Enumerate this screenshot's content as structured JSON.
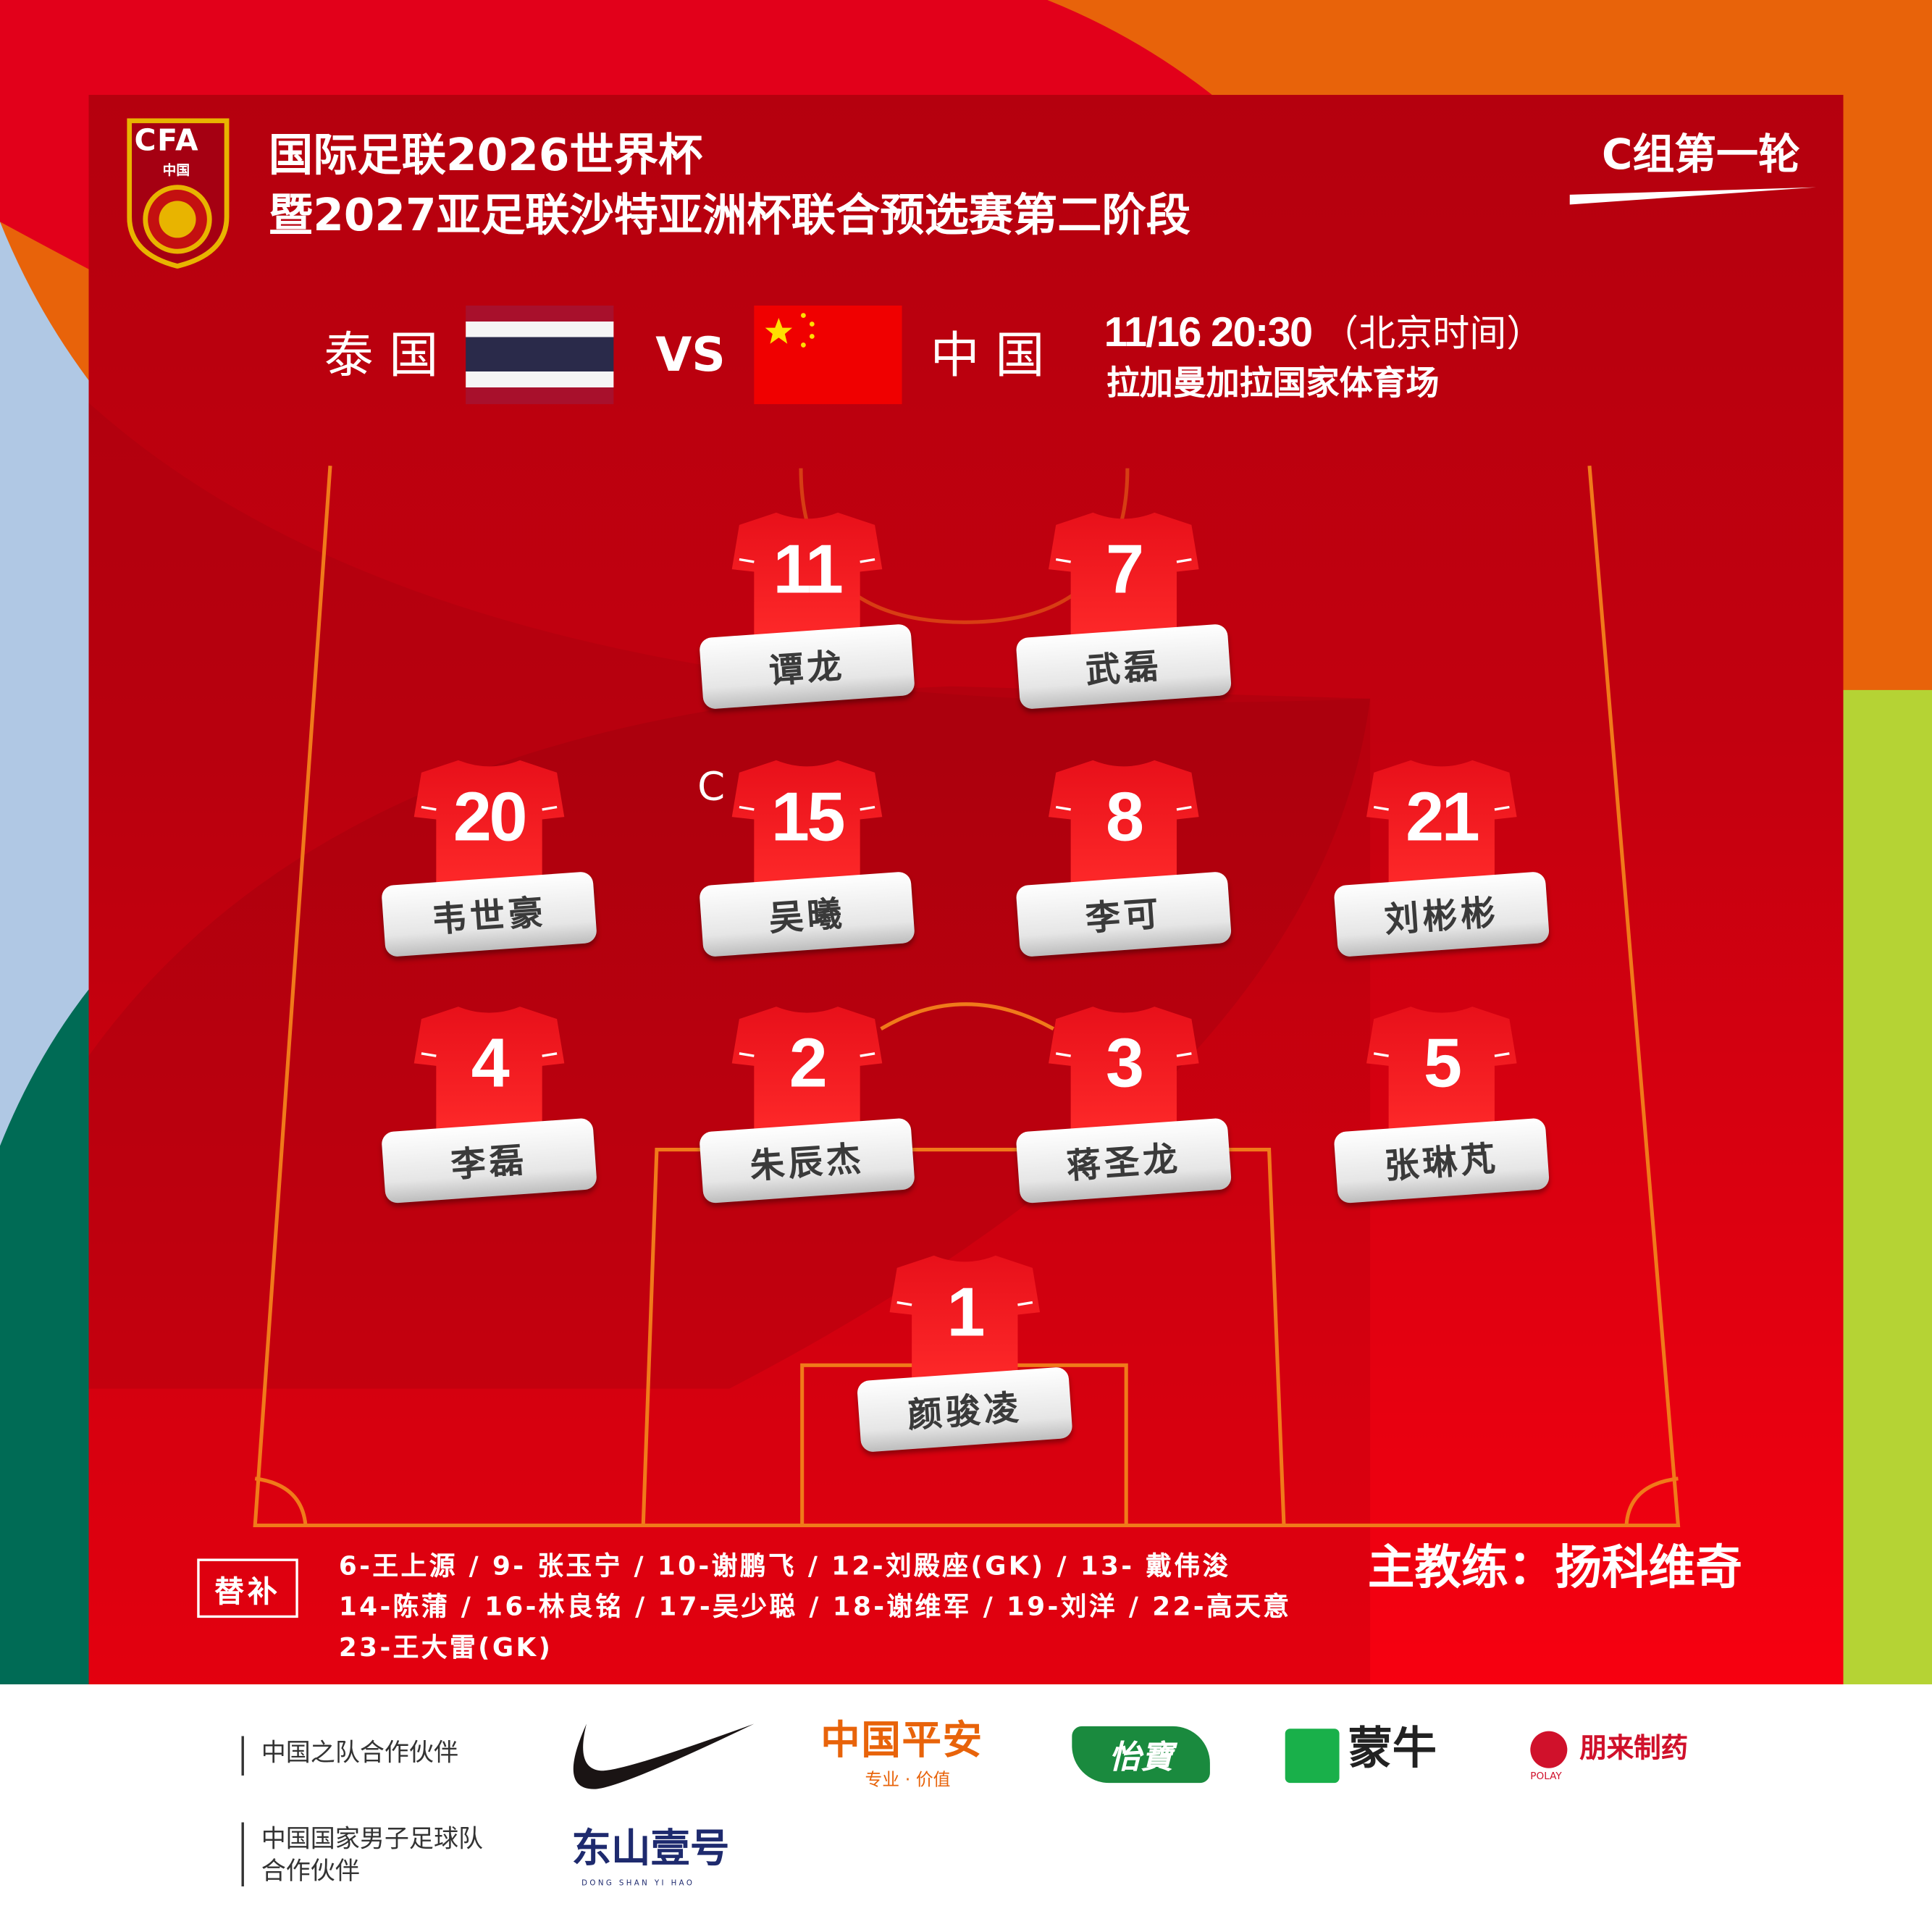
{
  "header": {
    "logo_text": "CFA",
    "logo_sub": "中国",
    "title_line1": "国际足联2026世界杯",
    "title_line2": "暨2027亚足联沙特亚洲杯联合预选赛第二阶段",
    "round": "C组第一轮"
  },
  "match": {
    "home": "泰 国",
    "vs": "VS",
    "away": "中 国",
    "datetime": "11/16 20:30",
    "timezone": "（北京时间）",
    "venue": "拉加曼加拉国家体育场"
  },
  "colors": {
    "primary_red": "#e00010",
    "pitch_line": "#f07a1a",
    "thai_blue": "#2a2a4a"
  },
  "lineup": {
    "captain_mark": "C",
    "players": [
      {
        "number": "11",
        "name": "谭龙"
      },
      {
        "number": "7",
        "name": "武磊"
      },
      {
        "number": "20",
        "name": "韦世豪"
      },
      {
        "number": "15",
        "name": "吴曦"
      },
      {
        "number": "8",
        "name": "李可"
      },
      {
        "number": "21",
        "name": "刘彬彬"
      },
      {
        "number": "4",
        "name": "李磊"
      },
      {
        "number": "2",
        "name": "朱辰杰"
      },
      {
        "number": "3",
        "name": "蒋圣龙"
      },
      {
        "number": "5",
        "name": "张琳芃"
      },
      {
        "number": "1",
        "name": "颜骏凌"
      }
    ]
  },
  "substitutes": {
    "label": "替补",
    "lines": [
      "6-王上源 / 9- 张玉宁 / 10-谢鹏飞 / 12-刘殿座(GK)  / 13- 戴伟浚",
      "14-陈蒲 / 16-林良铭 / 17-吴少聪 / 18-谢维军 / 19-刘洋 / 22-高天意",
      "23-王大雷(GK)"
    ]
  },
  "coach": "主教练：扬科维奇",
  "partners": {
    "group1_label": "中国之队合作伙伴",
    "group2_label_line1": "中国国家男子足球队",
    "group2_label_line2": "合作伙伴",
    "logos": [
      {
        "name": "nike",
        "text": ""
      },
      {
        "name": "pingan",
        "text": "中国平安",
        "sub": "专业 · 价值"
      },
      {
        "name": "yibao",
        "text": "怡寶"
      },
      {
        "name": "mengniu",
        "text": "蒙牛"
      },
      {
        "name": "polay",
        "text": "朋来制药",
        "sub": "POLAY"
      },
      {
        "name": "dongshan",
        "text": "东山壹号",
        "sub": "DONG SHAN YI HAO"
      }
    ]
  }
}
